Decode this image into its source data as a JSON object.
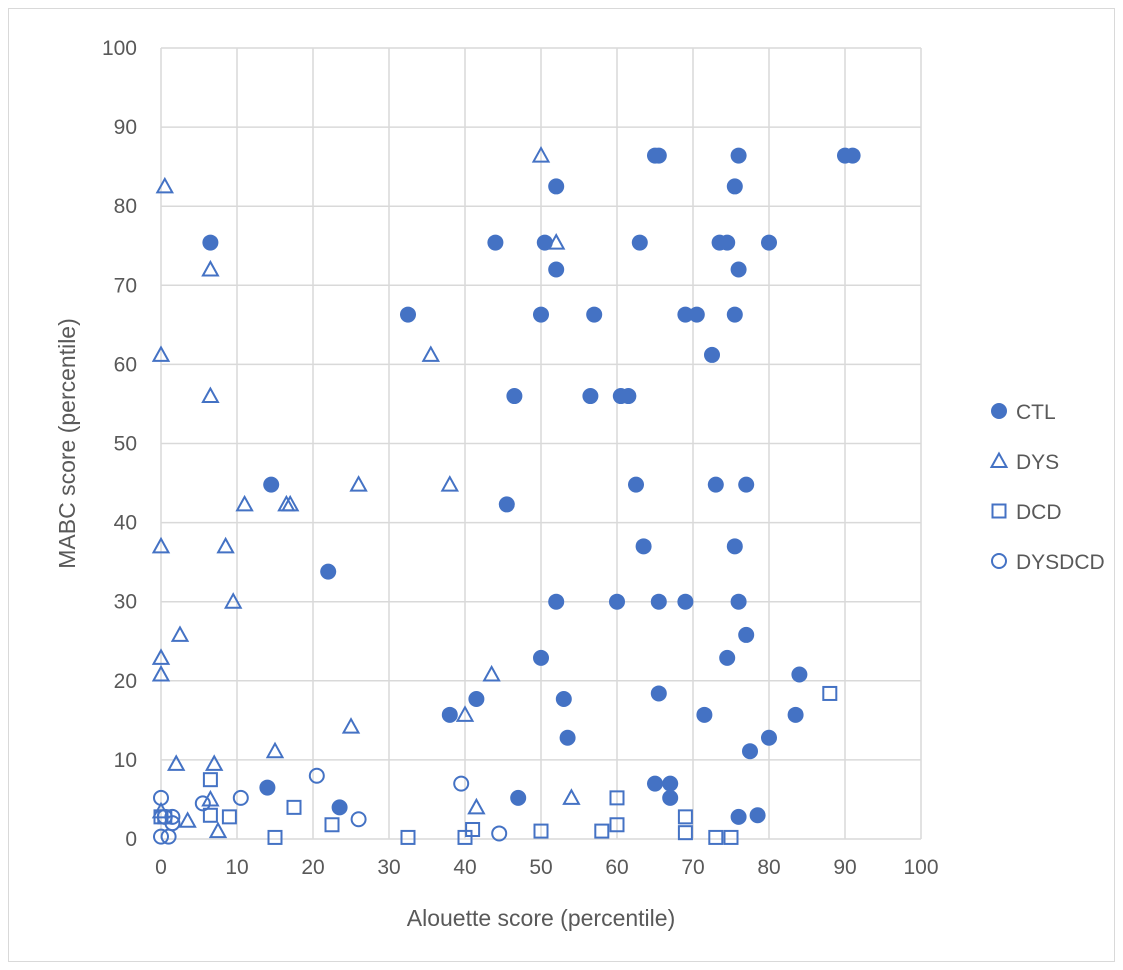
{
  "chart_data": {
    "type": "scatter",
    "title": "",
    "xlabel": "Alouette score (percentile)",
    "ylabel": "MABC score (percentile)",
    "xlim": [
      0,
      100
    ],
    "ylim": [
      0,
      100
    ],
    "xticks": [
      "0",
      "10",
      "20",
      "30",
      "40",
      "50",
      "60",
      "70",
      "80",
      "90",
      "100"
    ],
    "yticks": [
      "0",
      "10",
      "20",
      "30",
      "40",
      "50",
      "60",
      "70",
      "80",
      "90",
      "100"
    ],
    "grid": true,
    "legend_position": "right",
    "color": "#4472c4",
    "series": [
      {
        "name": "CTL",
        "marker": "filled-circle",
        "points": [
          [
            6.5,
            75.4
          ],
          [
            14.5,
            44.8
          ],
          [
            14,
            6.5
          ],
          [
            22,
            33.8
          ],
          [
            23.5,
            4
          ],
          [
            32.5,
            66.3
          ],
          [
            38,
            15.7
          ],
          [
            41.5,
            17.7
          ],
          [
            44,
            75.4
          ],
          [
            45.5,
            42.3
          ],
          [
            46.5,
            56
          ],
          [
            47,
            5.2
          ],
          [
            50,
            66.3
          ],
          [
            50,
            22.9
          ],
          [
            50.5,
            75.4
          ],
          [
            52,
            82.5
          ],
          [
            52,
            72
          ],
          [
            52,
            30
          ],
          [
            53,
            17.7
          ],
          [
            53.5,
            12.8
          ],
          [
            56.5,
            56
          ],
          [
            57,
            66.3
          ],
          [
            60,
            30
          ],
          [
            60.5,
            56
          ],
          [
            61.5,
            56
          ],
          [
            62.5,
            44.8
          ],
          [
            63,
            75.4
          ],
          [
            63.5,
            37
          ],
          [
            65,
            86.4
          ],
          [
            65.5,
            86.4
          ],
          [
            65.5,
            30
          ],
          [
            65.5,
            18.4
          ],
          [
            65,
            7
          ],
          [
            67,
            7
          ],
          [
            67,
            5.2
          ],
          [
            69,
            66.3
          ],
          [
            69,
            30
          ],
          [
            70.5,
            66.3
          ],
          [
            71.5,
            15.7
          ],
          [
            72.5,
            61.2
          ],
          [
            73,
            44.8
          ],
          [
            73.5,
            75.4
          ],
          [
            74.5,
            75.4
          ],
          [
            74.5,
            22.9
          ],
          [
            75.5,
            82.5
          ],
          [
            75.5,
            66.3
          ],
          [
            75.5,
            37
          ],
          [
            76,
            86.4
          ],
          [
            76,
            72
          ],
          [
            76,
            30
          ],
          [
            76,
            2.8
          ],
          [
            77,
            44.8
          ],
          [
            77,
            25.8
          ],
          [
            77.5,
            11.1
          ],
          [
            78.5,
            3
          ],
          [
            80,
            75.4
          ],
          [
            80,
            12.8
          ],
          [
            83.5,
            15.7
          ],
          [
            84,
            20.8
          ],
          [
            90,
            86.4
          ],
          [
            91,
            86.4
          ]
        ]
      },
      {
        "name": "DYS",
        "marker": "open-triangle",
        "points": [
          [
            0.5,
            82.5
          ],
          [
            0,
            61.2
          ],
          [
            0,
            37
          ],
          [
            0,
            22.9
          ],
          [
            0,
            20.8
          ],
          [
            0,
            3.5
          ],
          [
            2,
            9.5
          ],
          [
            2.5,
            25.8
          ],
          [
            3.5,
            2.3
          ],
          [
            6.5,
            72
          ],
          [
            6.5,
            56
          ],
          [
            6.5,
            5
          ],
          [
            7,
            9.5
          ],
          [
            7.5,
            1
          ],
          [
            8.5,
            37
          ],
          [
            9.5,
            30
          ],
          [
            11,
            42.3
          ],
          [
            15,
            11.1
          ],
          [
            16.5,
            42.3
          ],
          [
            17,
            42.3
          ],
          [
            25,
            14.2
          ],
          [
            26,
            44.8
          ],
          [
            35.5,
            61.2
          ],
          [
            38,
            44.8
          ],
          [
            40,
            15.7
          ],
          [
            41.5,
            4
          ],
          [
            43.5,
            20.8
          ],
          [
            50,
            86.4
          ],
          [
            52,
            75.4
          ],
          [
            54,
            5.2
          ]
        ]
      },
      {
        "name": "DCD",
        "marker": "open-square",
        "points": [
          [
            0,
            2.8
          ],
          [
            0.5,
            2.8
          ],
          [
            6.5,
            7.5
          ],
          [
            6.5,
            3
          ],
          [
            9,
            2.8
          ],
          [
            15,
            0.2
          ],
          [
            17.5,
            4
          ],
          [
            22.5,
            1.8
          ],
          [
            32.5,
            0.2
          ],
          [
            40,
            0.2
          ],
          [
            41,
            1.2
          ],
          [
            50,
            1
          ],
          [
            58,
            1
          ],
          [
            60,
            5.2
          ],
          [
            60,
            1.8
          ],
          [
            69,
            2.8
          ],
          [
            69,
            0.8
          ],
          [
            73,
            0.2
          ],
          [
            75,
            0.2
          ],
          [
            88,
            18.4
          ]
        ]
      },
      {
        "name": "DYSDCD",
        "marker": "open-circle",
        "points": [
          [
            0,
            5.2
          ],
          [
            0,
            0.3
          ],
          [
            0.5,
            2.8
          ],
          [
            1,
            0.3
          ],
          [
            1.5,
            2.8
          ],
          [
            1.5,
            2
          ],
          [
            5.5,
            4.5
          ],
          [
            10.5,
            5.2
          ],
          [
            20.5,
            8
          ],
          [
            26,
            2.5
          ],
          [
            39.5,
            7
          ],
          [
            44.5,
            0.7
          ]
        ]
      }
    ]
  }
}
